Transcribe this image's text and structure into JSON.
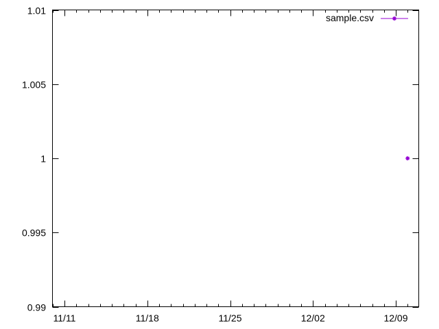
{
  "chart_data": {
    "type": "line",
    "title": "",
    "xlabel": "",
    "ylabel": "",
    "x_axis_type": "date",
    "xlim": [
      "2019-11-11",
      "2019-12-11"
    ],
    "ylim": [
      0.99,
      1.01
    ],
    "x_ticks": [
      {
        "date": "2019-11-11",
        "label": "11/11"
      },
      {
        "date": "2019-11-18",
        "label": "11/18"
      },
      {
        "date": "2019-11-25",
        "label": "11/25"
      },
      {
        "date": "2019-12-02",
        "label": "12/02"
      },
      {
        "date": "2019-12-09",
        "label": "12/09"
      }
    ],
    "y_ticks": [
      {
        "value": 0.99,
        "label": "0.99"
      },
      {
        "value": 0.995,
        "label": "0.995"
      },
      {
        "value": 1.0,
        "label": "1"
      },
      {
        "value": 1.005,
        "label": "1.005"
      },
      {
        "value": 1.01,
        "label": "1.01"
      }
    ],
    "grid": false,
    "legend_position": "top-right",
    "series": [
      {
        "name": "sample.csv",
        "color": "#9400d3",
        "marker": "point",
        "points": [
          {
            "x": "2019-12-10",
            "y": 1.0
          }
        ]
      }
    ]
  }
}
